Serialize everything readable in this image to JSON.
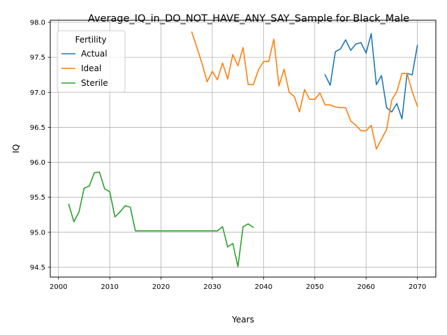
{
  "chart_data": {
    "type": "line",
    "title": "Average_IQ_in_DO_NOT_HAVE_ANY_SAY_Sample for Black_Male",
    "xlabel": "Years",
    "ylabel": "IQ",
    "xlim": [
      1998.4,
      2073.6
    ],
    "ylim": [
      94.36,
      98.03
    ],
    "xticks": [
      2000,
      2010,
      2020,
      2030,
      2040,
      2050,
      2060,
      2070
    ],
    "yticks": [
      94.5,
      95.0,
      95.5,
      96.0,
      96.5,
      97.0,
      97.5,
      98.0
    ],
    "xtick_labels": [
      "2000",
      "2010",
      "2020",
      "2030",
      "2040",
      "2050",
      "2060",
      "2070"
    ],
    "ytick_labels": [
      "94.5",
      "95.0",
      "95.5",
      "96.0",
      "96.5",
      "97.0",
      "97.5",
      "98.0"
    ],
    "grid": true,
    "legend": {
      "title": "Fertility",
      "placement": "upper-left"
    },
    "series": [
      {
        "name": "Actual",
        "color": "#1f77b4",
        "x": [
          2052,
          2053,
          2054,
          2055,
          2056,
          2057,
          2058,
          2059,
          2060,
          2061,
          2062,
          2063,
          2064,
          2065,
          2066,
          2067,
          2068,
          2069,
          2070
        ],
        "y": [
          97.25,
          97.1,
          97.58,
          97.62,
          97.75,
          97.6,
          97.69,
          97.71,
          97.56,
          97.84,
          97.11,
          97.24,
          96.78,
          96.72,
          96.84,
          96.62,
          97.27,
          97.25,
          97.67
        ]
      },
      {
        "name": "Ideal",
        "color": "#ff7f0e",
        "x": [
          2026,
          2027,
          2028,
          2029,
          2030,
          2031,
          2032,
          2033,
          2034,
          2035,
          2036,
          2037,
          2038,
          2039,
          2040,
          2041,
          2042,
          2043,
          2044,
          2045,
          2046,
          2047,
          2048,
          2049,
          2050,
          2051,
          2052,
          2053,
          2054,
          2055,
          2056,
          2057,
          2058,
          2059,
          2060,
          2061,
          2062,
          2063,
          2064,
          2065,
          2066,
          2067,
          2068,
          2069,
          2070
        ],
        "y": [
          97.86,
          97.64,
          97.41,
          97.15,
          97.3,
          97.18,
          97.42,
          97.19,
          97.54,
          97.38,
          97.64,
          97.11,
          97.11,
          97.32,
          97.44,
          97.44,
          97.76,
          97.09,
          97.33,
          97.0,
          96.94,
          96.72,
          97.04,
          96.9,
          96.9,
          96.99,
          96.82,
          96.82,
          96.79,
          96.78,
          96.78,
          96.59,
          96.53,
          96.45,
          96.45,
          96.53,
          96.19,
          96.33,
          96.47,
          96.89,
          97.01,
          97.27,
          97.27,
          97.01,
          96.8
        ]
      },
      {
        "name": "Sterile",
        "color": "#2ca02c",
        "x": [
          2002,
          2003,
          2004,
          2005,
          2006,
          2007,
          2008,
          2009,
          2010,
          2011,
          2012,
          2013,
          2014,
          2015,
          2016,
          2017,
          2018,
          2019,
          2020,
          2021,
          2022,
          2023,
          2024,
          2025,
          2026,
          2027,
          2028,
          2029,
          2030,
          2031,
          2032,
          2033,
          2034,
          2035,
          2036,
          2037,
          2038
        ],
        "y": [
          95.4,
          95.15,
          95.29,
          95.63,
          95.66,
          95.85,
          95.86,
          95.62,
          95.58,
          95.22,
          95.29,
          95.38,
          95.36,
          95.02,
          95.02,
          95.02,
          95.02,
          95.02,
          95.02,
          95.02,
          95.02,
          95.02,
          95.02,
          95.02,
          95.02,
          95.02,
          95.02,
          95.02,
          95.02,
          95.02,
          95.08,
          94.79,
          94.84,
          94.51,
          95.08,
          95.12,
          95.07
        ]
      }
    ]
  }
}
